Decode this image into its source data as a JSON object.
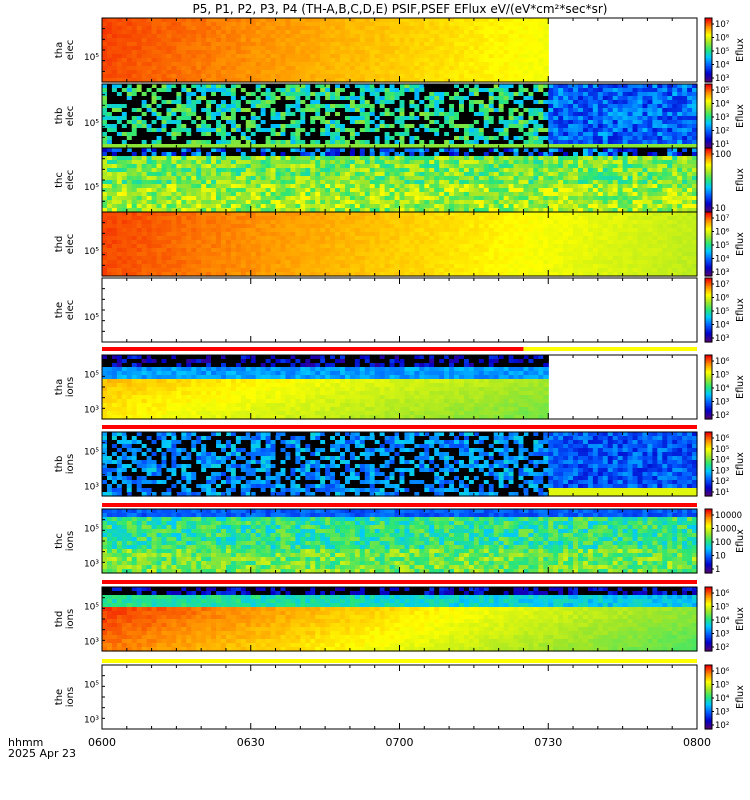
{
  "title": "P5, P1, P2, P3, P4 (TH-A,B,C,D,E) PSIF,PSEF EFlux eV/(eV*cm²*sec*sr)",
  "time_axis": {
    "tick_labels": [
      "0600",
      "0630",
      "0700",
      "0730",
      "0800"
    ],
    "label_line1": "hhmm",
    "label_line2": "2025 Apr 23"
  },
  "colors": {
    "mode_bar_red": "#ff0000",
    "mode_bar_yellow": "#ffff00",
    "frame": "#000000",
    "background": "#ffffff"
  },
  "chart_data": {
    "type": "heatmap",
    "x_range_hhmm": [
      "0600",
      "0800"
    ],
    "panels": [
      {
        "id": "tha-elec",
        "label1": "tha",
        "label2": "elec",
        "ytick": "10⁵",
        "colorbar_label": "Eflux",
        "colorbar_ticks": [
          "10⁷",
          "10⁶",
          "10⁵",
          "10⁴",
          "10³"
        ],
        "data_end_hhmm": "0730",
        "pattern": "smooth-high"
      },
      {
        "id": "thb-elec",
        "label1": "thb",
        "label2": "elec",
        "ytick": "10⁵",
        "colorbar_label": "Eflux",
        "colorbar_ticks": [
          "10⁵",
          "10⁴",
          "10³",
          "10²",
          "10¹"
        ],
        "data_end_hhmm": "0800",
        "pattern": "noisy",
        "mode_change_hhmm": "0730"
      },
      {
        "id": "thc-elec",
        "label1": "thc",
        "label2": "elec",
        "ytick": "10⁵",
        "colorbar_label": "Eflux",
        "colorbar_ticks": [
          "100",
          "10"
        ],
        "data_end_hhmm": "0800",
        "pattern": "banded"
      },
      {
        "id": "thd-elec",
        "label1": "thd",
        "label2": "elec",
        "ytick": "10⁵",
        "colorbar_label": "Eflux",
        "colorbar_ticks": [
          "10⁷",
          "10⁶",
          "10⁵",
          "10⁴",
          "10³"
        ],
        "data_end_hhmm": "0800",
        "pattern": "smooth-high"
      },
      {
        "id": "the-elec",
        "label1": "the",
        "label2": "elec",
        "ytick": "10⁵",
        "colorbar_label": "Eflux",
        "colorbar_ticks": [
          "10⁷",
          "10⁶",
          "10⁵",
          "10⁴",
          "10³"
        ],
        "data_end_hhmm": "0600",
        "pattern": "empty"
      },
      {
        "id": "tha-ions",
        "label1": "tha",
        "label2": "ions",
        "ytick": "10⁵",
        "ytick2": "10³",
        "colorbar_label": "Eflux",
        "colorbar_ticks": [
          "10⁶",
          "10⁵",
          "10⁴",
          "10³",
          "10²"
        ],
        "data_end_hhmm": "0730",
        "pattern": "ions-smooth"
      },
      {
        "id": "thb-ions",
        "label1": "thb",
        "label2": "ions",
        "ytick": "10⁵",
        "ytick2": "10³",
        "colorbar_label": "Eflux",
        "colorbar_ticks": [
          "10⁶",
          "10⁵",
          "10⁴",
          "10³",
          "10²",
          "10¹"
        ],
        "data_end_hhmm": "0800",
        "pattern": "noisy-ions",
        "mode_change_hhmm": "0730"
      },
      {
        "id": "thc-ions",
        "label1": "thc",
        "label2": "ions",
        "ytick": "10⁵",
        "ytick2": "10³",
        "colorbar_label": "Eflux",
        "colorbar_ticks": [
          "10000",
          "1000",
          "100",
          "10",
          "1"
        ],
        "data_end_hhmm": "0800",
        "pattern": "striped"
      },
      {
        "id": "thd-ions",
        "label1": "thd",
        "label2": "ions",
        "ytick": "10⁵",
        "ytick2": "10³",
        "colorbar_label": "Eflux",
        "colorbar_ticks": [
          "10⁶",
          "10⁵",
          "10⁴",
          "10³",
          "10²"
        ],
        "data_end_hhmm": "0800",
        "pattern": "ions-hot"
      },
      {
        "id": "the-ions",
        "label1": "the",
        "label2": "ions",
        "ytick": "10⁵",
        "ytick2": "10³",
        "colorbar_label": "Eflux",
        "colorbar_ticks": [
          "10⁶",
          "10⁵",
          "10⁴",
          "10³",
          "10²"
        ],
        "data_end_hhmm": "0600",
        "pattern": "empty"
      }
    ],
    "mode_bars": [
      {
        "after_panel": "the-elec",
        "segments": [
          {
            "color": "red",
            "from": "0600",
            "to": "0725"
          },
          {
            "color": "yellow",
            "from": "0725",
            "to": "0800"
          }
        ]
      },
      {
        "after_panel": "tha-ions",
        "segments": [
          {
            "color": "red",
            "from": "0600",
            "to": "0800"
          }
        ]
      },
      {
        "after_panel": "thb-ions",
        "segments": [
          {
            "color": "red",
            "from": "0600",
            "to": "0800"
          }
        ]
      },
      {
        "after_panel": "thc-ions",
        "segments": [
          {
            "color": "red",
            "from": "0600",
            "to": "0800"
          }
        ]
      },
      {
        "after_panel": "thd-ions",
        "segments": [
          {
            "color": "yellow",
            "from": "0600",
            "to": "0800"
          }
        ]
      }
    ]
  }
}
